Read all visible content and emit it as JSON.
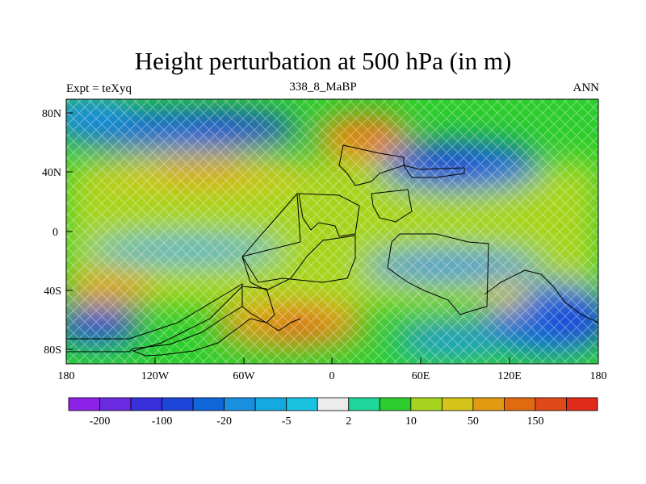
{
  "title": "Height perturbation at 500 hPa (in m)",
  "left_label": "Expt = teXyq",
  "center_label": "338_8_MaBP",
  "right_label": "ANN",
  "lat_ticks": [
    "80N",
    "40N",
    "0",
    "40S",
    "80S"
  ],
  "lon_ticks": [
    "180",
    "120W",
    "60W",
    "0",
    "60E",
    "120E",
    "180"
  ],
  "colorbar": {
    "labels": [
      "-200",
      "-100",
      "-20",
      "-5",
      "2",
      "10",
      "50",
      "150"
    ],
    "colors": [
      "#8b22e6",
      "#6a2be0",
      "#3a2fdc",
      "#1f45d8",
      "#0f66d8",
      "#1a8fe0",
      "#16a8e0",
      "#18c2e0",
      "#ececec",
      "#1ed69a",
      "#2ccd2c",
      "#a6d41e",
      "#d4c41a",
      "#e19a12",
      "#e06a10",
      "#e04a1a",
      "#e02a1a"
    ]
  },
  "chart_data": {
    "type": "heatmap",
    "title": "Height perturbation at 500 hPa (in m)",
    "x_range": [
      -180,
      180
    ],
    "y_range": [
      -90,
      90
    ],
    "xticks": [
      -180,
      -120,
      -60,
      0,
      60,
      120,
      180
    ],
    "yticks": [
      80,
      40,
      0,
      -40,
      -80
    ],
    "features": [
      {
        "kind": "low",
        "lon": -120,
        "lat": 72,
        "value": -50
      },
      {
        "kind": "low",
        "lon": 75,
        "lat": 42,
        "value": -100
      },
      {
        "kind": "high",
        "lon": 20,
        "lat": 62,
        "value": 60
      },
      {
        "kind": "high",
        "lon": -100,
        "lat": 40,
        "value": 30
      },
      {
        "kind": "high",
        "lon": -155,
        "lat": -42,
        "value": 30
      },
      {
        "kind": "low",
        "lon": -165,
        "lat": -65,
        "value": -50
      },
      {
        "kind": "high",
        "lon": -20,
        "lat": -65,
        "value": 80
      },
      {
        "kind": "low",
        "lon": 155,
        "lat": -65,
        "value": -50
      },
      {
        "kind": "high",
        "lon": 120,
        "lat": -45,
        "value": 20
      }
    ]
  }
}
